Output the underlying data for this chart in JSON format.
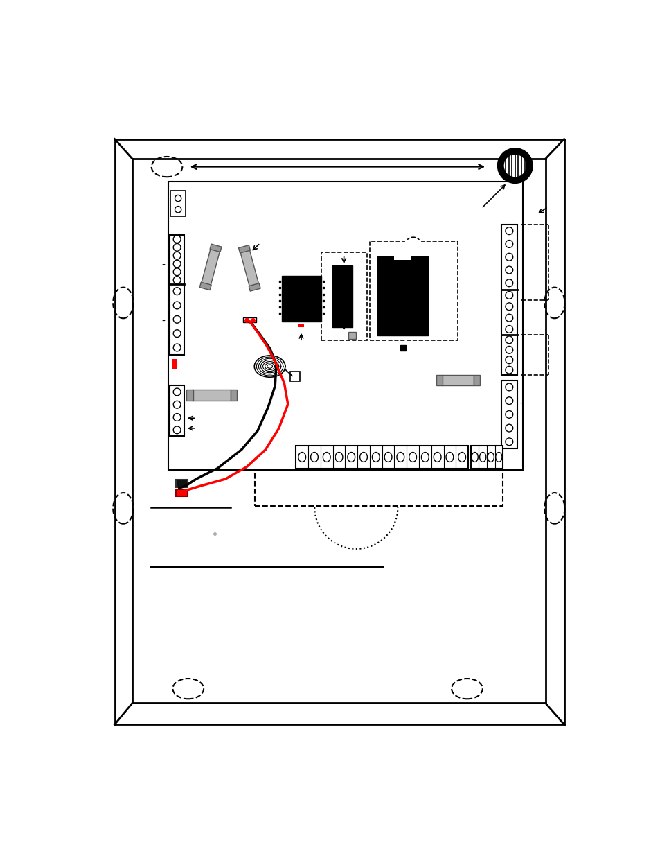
{
  "bg_color": "#ffffff",
  "line_color": "#000000",
  "red_color": "#ff0000"
}
